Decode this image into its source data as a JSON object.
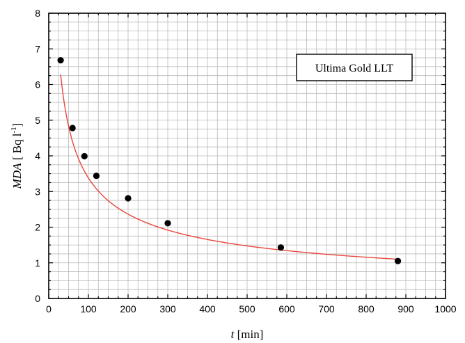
{
  "chart_data": {
    "type": "scatter",
    "annotation": "Ultima Gold LLT",
    "xlabel": {
      "italic": "t",
      "rest": " [min]"
    },
    "ylabel": {
      "italic": "MDA",
      "rest": " [ Bq l",
      "sup": "-1",
      "end": "]"
    },
    "xlim": [
      0,
      1000
    ],
    "ylim": [
      0,
      8
    ],
    "x_ticks": [
      0,
      100,
      200,
      300,
      400,
      500,
      600,
      700,
      800,
      900,
      1000
    ],
    "y_ticks": [
      0,
      1,
      2,
      3,
      4,
      5,
      6,
      7,
      8
    ],
    "x_minor_step": 25,
    "y_minor_step": 0.25,
    "grid": true,
    "legend_position": "top-right",
    "series": [
      {
        "marker_color": "#000000",
        "x": [
          30,
          60,
          90,
          120,
          200,
          300,
          585,
          880
        ],
        "y": [
          6.68,
          4.78,
          3.99,
          3.44,
          2.81,
          2.11,
          1.43,
          1.05
        ]
      }
    ],
    "fit": {
      "color": "#e8453c",
      "x_range": [
        30,
        880
      ],
      "model": "power",
      "a": 36.3,
      "b": -0.5155
    },
    "colors": {
      "grid": "#b9b9b9",
      "axis": "#000000",
      "marker": "#000000",
      "fit_line": "#e8453c"
    }
  }
}
